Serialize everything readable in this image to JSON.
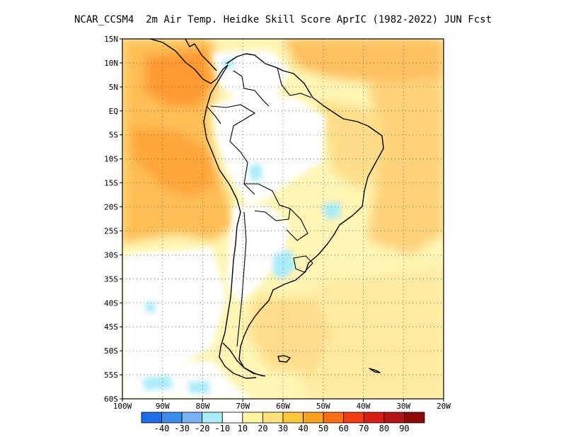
{
  "title": "NCAR_CCSM4  2m Air Temp. Heidke Skill Score AprIC (1982-2022) JUN Fcst",
  "map": {
    "lon_range": [
      -100,
      -20
    ],
    "lat_range": [
      -60,
      15
    ],
    "lat_ticks": [
      {
        "value": 15,
        "label": "15N"
      },
      {
        "value": 10,
        "label": "10N"
      },
      {
        "value": 5,
        "label": "5N"
      },
      {
        "value": 0,
        "label": "EQ"
      },
      {
        "value": -5,
        "label": "5S"
      },
      {
        "value": -10,
        "label": "10S"
      },
      {
        "value": -15,
        "label": "15S"
      },
      {
        "value": -20,
        "label": "20S"
      },
      {
        "value": -25,
        "label": "25S"
      },
      {
        "value": -30,
        "label": "30S"
      },
      {
        "value": -35,
        "label": "35S"
      },
      {
        "value": -40,
        "label": "40S"
      },
      {
        "value": -45,
        "label": "45S"
      },
      {
        "value": -50,
        "label": "50S"
      },
      {
        "value": -55,
        "label": "55S"
      },
      {
        "value": -60,
        "label": "60S"
      }
    ],
    "lon_ticks": [
      {
        "value": -100,
        "label": "100W"
      },
      {
        "value": -90,
        "label": "90W"
      },
      {
        "value": -80,
        "label": "80W"
      },
      {
        "value": -70,
        "label": "70W"
      },
      {
        "value": -60,
        "label": "60W"
      },
      {
        "value": -50,
        "label": "50W"
      },
      {
        "value": -40,
        "label": "40W"
      },
      {
        "value": -30,
        "label": "30W"
      },
      {
        "value": -20,
        "label": "20W"
      }
    ],
    "grid": "dotted",
    "field": "2m Air Temp. Heidke Skill Score"
  },
  "colorbar": {
    "boundaries": [
      "-40",
      "-30",
      "-20",
      "-10",
      "10",
      "20",
      "30",
      "40",
      "50",
      "60",
      "70",
      "80",
      "90"
    ],
    "colors": [
      "#1e6eeb",
      "#3c8cf0",
      "#78b4f5",
      "#aaecfa",
      "#ffffff",
      "#fff5a0",
      "#ffe178",
      "#ffc83c",
      "#ffa01e",
      "#ff6e14",
      "#f53c14",
      "#d71e14",
      "#b41414",
      "#8c0a0a"
    ]
  },
  "chart_data": {
    "type": "heatmap",
    "title": "NCAR_CCSM4  2m Air Temp. Heidke Skill Score AprIC (1982-2022) JUN Fcst",
    "xlabel": "",
    "ylabel": "",
    "xlim": [
      -100,
      -20
    ],
    "ylim": [
      -60,
      15
    ],
    "x_tick_labels": [
      "100W",
      "90W",
      "80W",
      "70W",
      "60W",
      "50W",
      "40W",
      "30W",
      "20W"
    ],
    "y_tick_labels": [
      "15N",
      "10N",
      "5N",
      "EQ",
      "5S",
      "10S",
      "15S",
      "20S",
      "25S",
      "30S",
      "35S",
      "40S",
      "45S",
      "50S",
      "55S",
      "60S"
    ],
    "legend": "bottom",
    "grid": true,
    "regions": [
      {
        "lon": [
          -100,
          -75
        ],
        "lat": [
          -30,
          15
        ],
        "range": "30-50"
      },
      {
        "lon": [
          -92,
          -83
        ],
        "lat": [
          3,
          12
        ],
        "range": "50-60"
      },
      {
        "lon": [
          -97,
          -88
        ],
        "lat": [
          -12,
          -3
        ],
        "range": "40-50"
      },
      {
        "lon": [
          -68,
          -44
        ],
        "lat": [
          5,
          15
        ],
        "range": "30-40"
      },
      {
        "lon": [
          -20,
          -45
        ],
        "lat": [
          -15,
          15
        ],
        "range": "20-40"
      },
      {
        "lon": [
          -75,
          -55
        ],
        "lat": [
          -30,
          0
        ],
        "range": "-10-10"
      },
      {
        "lon": [
          -62,
          -56
        ],
        "lat": [
          -35,
          -30
        ],
        "range": "-20--10"
      },
      {
        "lon": [
          -50,
          -45
        ],
        "lat": [
          -22,
          -18
        ],
        "range": "-20--10"
      },
      {
        "lon": [
          -72,
          -50
        ],
        "lat": [
          -55,
          -35
        ],
        "range": "10-30"
      },
      {
        "lon": [
          -100,
          -75
        ],
        "lat": [
          -60,
          -35
        ],
        "range": "-10-20"
      }
    ]
  }
}
